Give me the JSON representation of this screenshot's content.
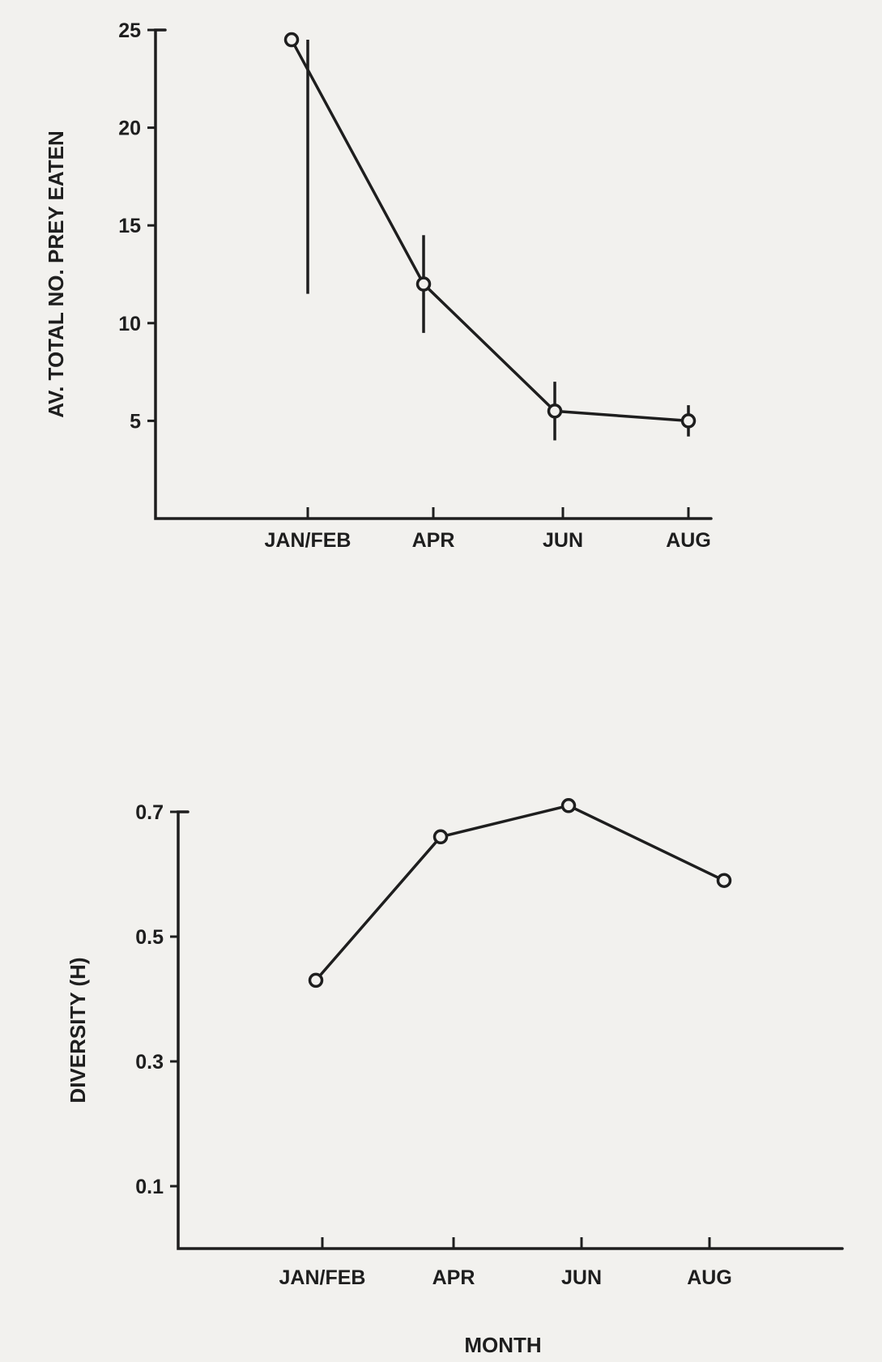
{
  "chart_data": [
    {
      "type": "line",
      "categories": [
        "JAN/FEB",
        "APR",
        "JUN",
        "AUG"
      ],
      "x_axis_labels": [
        "JAN/FEB",
        "APR",
        "JUN",
        "AUG"
      ],
      "series": [
        {
          "values": [
            24.5,
            12.0,
            5.5,
            5.0
          ],
          "error_low": [
            11.5,
            9.5,
            4.0,
            4.2
          ],
          "error_high": [
            24.5,
            14.5,
            7.0,
            5.8
          ]
        }
      ],
      "ylabel": "AV. TOTAL NO. PREY EATEN",
      "xlabel": "",
      "ylim": [
        0,
        25
      ],
      "yticks": [
        5,
        10,
        15,
        20,
        25
      ],
      "grid": false
    },
    {
      "type": "line",
      "categories": [
        "JAN/FEB",
        "APR",
        "JUN",
        "AUG"
      ],
      "x_axis_labels": [
        "JAN/FEB",
        "APR",
        "JUN",
        "AUG"
      ],
      "series": [
        {
          "values": [
            0.43,
            0.66,
            0.71,
            0.59
          ]
        }
      ],
      "ylabel": "DIVERSITY (H)",
      "xlabel": "MONTH",
      "ylim": [
        0,
        0.7
      ],
      "yticks": [
        0.1,
        0.3,
        0.5,
        0.7
      ],
      "grid": false
    }
  ]
}
